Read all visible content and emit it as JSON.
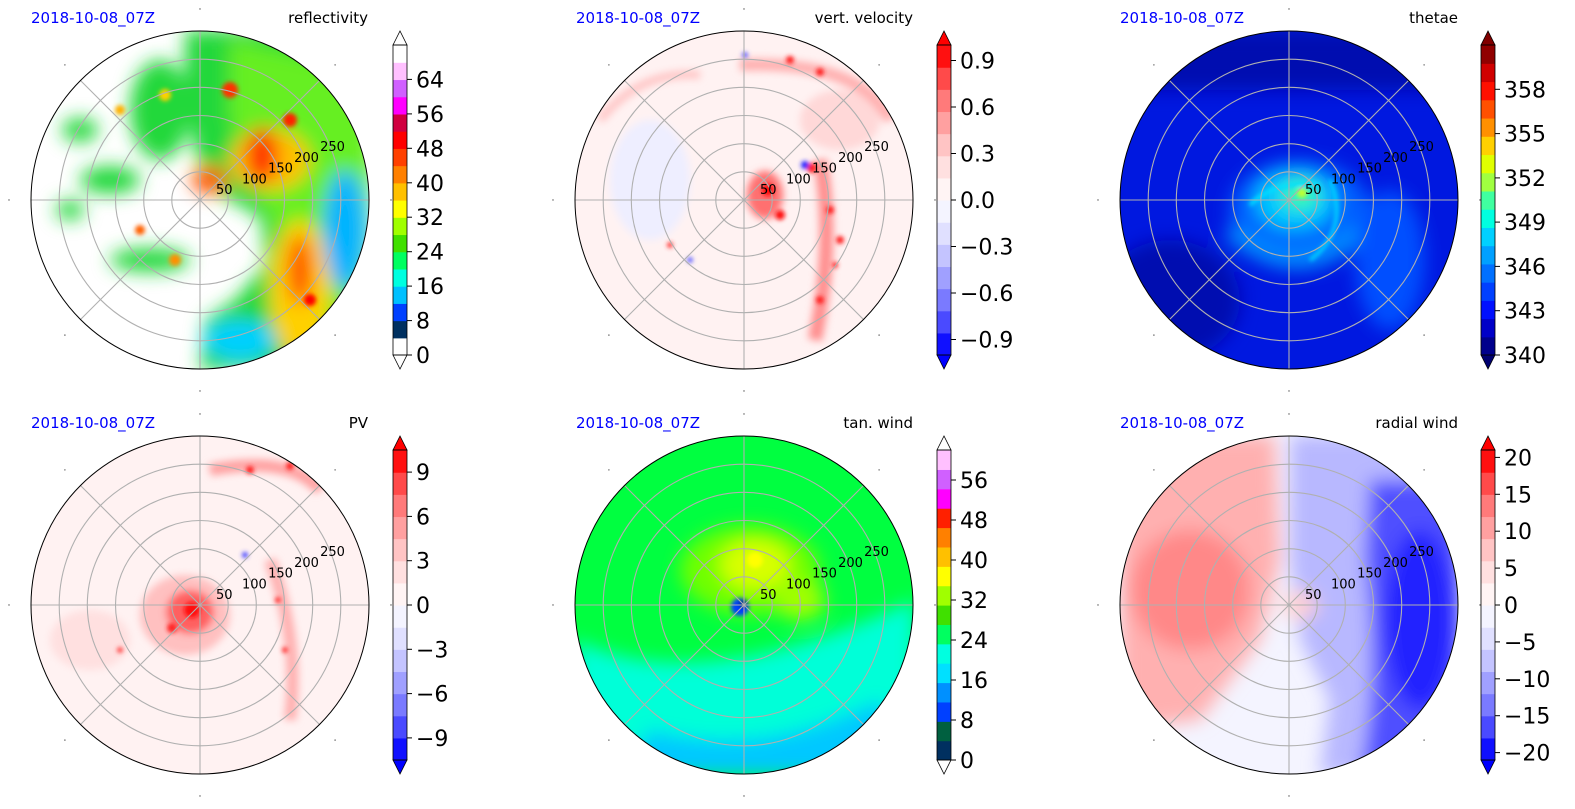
{
  "chart_data": [
    {
      "type": "heatmap",
      "projection": "polar",
      "date": "2018-10-08_07Z",
      "title": "reflectivity",
      "ring_labels": [
        "50",
        "100",
        "150",
        "200",
        "250"
      ],
      "rlim": [
        0,
        300
      ],
      "grid": true,
      "colorbar": {
        "ticks": [
          "0",
          "8",
          "16",
          "24",
          "32",
          "40",
          "48",
          "56",
          "64"
        ],
        "range": [
          0,
          72
        ],
        "colors": [
          "#ffffff",
          "#003060",
          "#0040ff",
          "#00c0ff",
          "#00ffe0",
          "#00ff60",
          "#40e000",
          "#a0ff00",
          "#ffff00",
          "#ffc000",
          "#ff8000",
          "#ff4000",
          "#ff0000",
          "#d00040",
          "#ff00ff",
          "#d060ff",
          "#ffc0ff",
          "#ffffff"
        ],
        "extend": "both",
        "under_color": "#ffffff",
        "over_color": "#ffffff"
      }
    },
    {
      "type": "heatmap",
      "projection": "polar",
      "date": "2018-10-08_07Z",
      "title": "vert. velocity",
      "ring_labels": [
        "50",
        "100",
        "150",
        "200",
        "250"
      ],
      "rlim": [
        0,
        300
      ],
      "grid": true,
      "colorbar": {
        "ticks": [
          "0.9",
          "0.6",
          "0.3",
          "0.0",
          "−0.3",
          "−0.6",
          "−0.9"
        ],
        "tick_values": [
          0.9,
          0.6,
          0.3,
          0.0,
          -0.3,
          -0.6,
          -0.9
        ],
        "range": [
          -1.0,
          1.0
        ],
        "colors": [
          "#1010ff",
          "#4a4aff",
          "#7a7aff",
          "#a0a0ff",
          "#c4c4ff",
          "#e0e0ff",
          "#f4f4ff",
          "#fff4f4",
          "#ffe0e0",
          "#ffc4c4",
          "#ffa0a0",
          "#ff7a7a",
          "#ff4a4a",
          "#ff1010"
        ],
        "extend": "both",
        "under_color": "#0000ff",
        "over_color": "#ff0000"
      }
    },
    {
      "type": "heatmap",
      "projection": "polar",
      "date": "2018-10-08_07Z",
      "title": "thetae",
      "ring_labels": [
        "50",
        "100",
        "150",
        "200",
        "250"
      ],
      "rlim": [
        0,
        300
      ],
      "grid": true,
      "colorbar": {
        "ticks": [
          "358",
          "355",
          "352",
          "349",
          "346",
          "343",
          "340"
        ],
        "tick_values": [
          358,
          355,
          352,
          349,
          346,
          343,
          340
        ],
        "range": [
          340,
          361
        ],
        "colors": [
          "#00008c",
          "#0000c8",
          "#0010ff",
          "#0040ff",
          "#0070ff",
          "#00a0ff",
          "#00d0ff",
          "#00ffe0",
          "#40ffa0",
          "#a0ff40",
          "#e0ff00",
          "#ffd000",
          "#ff9000",
          "#ff5000",
          "#ff1000",
          "#d00000",
          "#900000"
        ],
        "extend": "both",
        "under_color": "#000070",
        "over_color": "#800000"
      }
    },
    {
      "type": "heatmap",
      "projection": "polar",
      "date": "2018-10-08_07Z",
      "title": "PV",
      "ring_labels": [
        "50",
        "100",
        "150",
        "200",
        "250"
      ],
      "rlim": [
        0,
        300
      ],
      "grid": true,
      "colorbar": {
        "ticks": [
          "9",
          "6",
          "3",
          "0",
          "−3",
          "−6",
          "−9"
        ],
        "tick_values": [
          9,
          6,
          3,
          0,
          -3,
          -6,
          -9
        ],
        "range": [
          -10.5,
          10.5
        ],
        "colors": [
          "#1010ff",
          "#4a4aff",
          "#7a7aff",
          "#a0a0ff",
          "#c4c4ff",
          "#e0e0ff",
          "#f4f4ff",
          "#fff4f4",
          "#ffe0e0",
          "#ffc4c4",
          "#ffa0a0",
          "#ff7a7a",
          "#ff4a4a",
          "#ff1010"
        ],
        "extend": "both",
        "under_color": "#0000ff",
        "over_color": "#ff0000"
      }
    },
    {
      "type": "heatmap",
      "projection": "polar",
      "date": "2018-10-08_07Z",
      "title": "tan. wind",
      "ring_labels": [
        "50",
        "100",
        "150",
        "200",
        "250"
      ],
      "rlim": [
        0,
        300
      ],
      "grid": true,
      "colorbar": {
        "ticks": [
          "0",
          "8",
          "16",
          "24",
          "32",
          "40",
          "48",
          "56"
        ],
        "range": [
          0,
          62
        ],
        "colors": [
          "#003060",
          "#006040",
          "#0040ff",
          "#0090ff",
          "#00e0ff",
          "#00ffe0",
          "#00ff60",
          "#40e000",
          "#a0ff00",
          "#ffff00",
          "#ffc000",
          "#ff8000",
          "#ff2000",
          "#ff00ff",
          "#d060ff",
          "#ffc0ff"
        ],
        "extend": "both",
        "under_color": "#ffffff",
        "over_color": "#ffffff"
      }
    },
    {
      "type": "heatmap",
      "projection": "polar",
      "date": "2018-10-08_07Z",
      "title": "radial wind",
      "ring_labels": [
        "50",
        "100",
        "150",
        "200",
        "250"
      ],
      "rlim": [
        0,
        300
      ],
      "grid": true,
      "colorbar": {
        "ticks": [
          "20",
          "15",
          "10",
          "5",
          "0",
          "−5",
          "−10",
          "−15",
          "−20"
        ],
        "tick_values": [
          20,
          15,
          10,
          5,
          0,
          -5,
          -10,
          -15,
          -20
        ],
        "range": [
          -21,
          21
        ],
        "colors": [
          "#1010ff",
          "#4a4aff",
          "#7a7aff",
          "#a0a0ff",
          "#c4c4ff",
          "#e0e0ff",
          "#f4f4ff",
          "#fff4f4",
          "#ffe0e0",
          "#ffc4c4",
          "#ffa0a0",
          "#ff7a7a",
          "#ff4a4a",
          "#ff1010"
        ],
        "extend": "both",
        "under_color": "#0000ff",
        "over_color": "#ff0000"
      }
    }
  ]
}
